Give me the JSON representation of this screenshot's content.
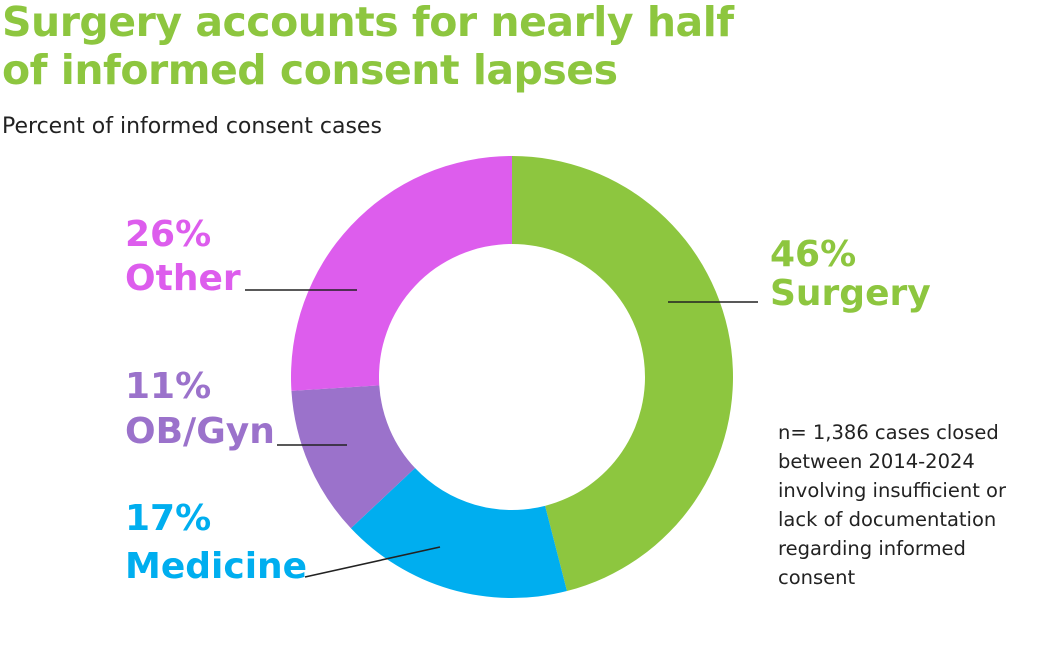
{
  "chart_data": {
    "type": "donut",
    "title": "Surgery accounts for nearly half of informed consent lapses",
    "subtitle": "Percent of informed consent cases",
    "categories": [
      "Surgery",
      "Medicine",
      "OB/Gyn",
      "Other"
    ],
    "values": [
      46,
      17,
      11,
      26
    ],
    "value_labels": [
      "46%",
      "17%",
      "11%",
      "26%"
    ],
    "colors": [
      "#8dc63f",
      "#00aeef",
      "#9b72cb",
      "#dd5ded"
    ],
    "note": "n= 1,386 cases closed between 2014-2024 involving insufficient or lack of documentation regarding informed consent"
  }
}
